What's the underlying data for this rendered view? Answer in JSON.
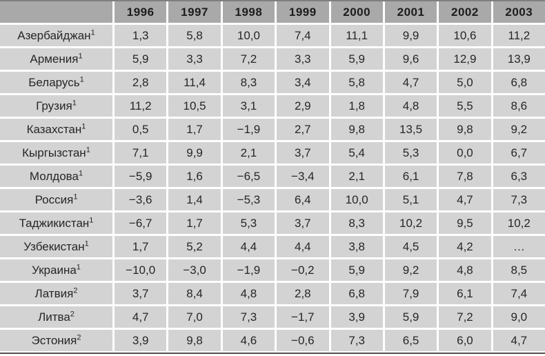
{
  "table": {
    "corner_label": "",
    "years": [
      "1996",
      "1997",
      "1998",
      "1999",
      "2000",
      "2001",
      "2002",
      "2003"
    ],
    "rows": [
      {
        "country": "Азербайджан",
        "footnote": "1",
        "values": [
          "1,3",
          "5,8",
          "10,0",
          "7,4",
          "11,1",
          "9,9",
          "10,6",
          "11,2"
        ]
      },
      {
        "country": "Армения",
        "footnote": "1",
        "values": [
          "5,9",
          "3,3",
          "7,2",
          "3,3",
          "5,9",
          "9,6",
          "12,9",
          "13,9"
        ]
      },
      {
        "country": "Беларусь",
        "footnote": "1",
        "values": [
          "2,8",
          "11,4",
          "8,3",
          "3,4",
          "5,8",
          "4,7",
          "5,0",
          "6,8"
        ]
      },
      {
        "country": "Грузия",
        "footnote": "1",
        "values": [
          "11,2",
          "10,5",
          "3,1",
          "2,9",
          "1,8",
          "4,8",
          "5,5",
          "8,6"
        ]
      },
      {
        "country": "Казахстан",
        "footnote": "1",
        "values": [
          "0,5",
          "1,7",
          "−1,9",
          "2,7",
          "9,8",
          "13,5",
          "9,8",
          "9,2"
        ]
      },
      {
        "country": "Кыргызстан",
        "footnote": "1",
        "values": [
          "7,1",
          "9,9",
          "2,1",
          "3,7",
          "5,4",
          "5,3",
          "0,0",
          "6,7"
        ]
      },
      {
        "country": "Молдова",
        "footnote": "1",
        "values": [
          "−5,9",
          "1,6",
          "−6,5",
          "−3,4",
          "2,1",
          "6,1",
          "7,8",
          "6,3"
        ]
      },
      {
        "country": "Россия",
        "footnote": "1",
        "values": [
          "−3,6",
          "1,4",
          "−5,3",
          "6,4",
          "10,0",
          "5,1",
          "4,7",
          "7,3"
        ]
      },
      {
        "country": "Таджикистан",
        "footnote": "1",
        "values": [
          "−6,7",
          "1,7",
          "5,3",
          "3,7",
          "8,3",
          "10,2",
          "9,5",
          "10,2"
        ]
      },
      {
        "country": "Узбекистан",
        "footnote": "1",
        "values": [
          "1,7",
          "5,2",
          "4,4",
          "4,4",
          "3,8",
          "4,5",
          "4,2",
          "…"
        ]
      },
      {
        "country": "Украина",
        "footnote": "1",
        "values": [
          "−10,0",
          "−3,0",
          "−1,9",
          "−0,2",
          "5,9",
          "9,2",
          "4,8",
          "8,5"
        ]
      },
      {
        "country": "Латвия",
        "footnote": "2",
        "values": [
          "3,7",
          "8,4",
          "4,8",
          "2,8",
          "6,8",
          "7,9",
          "6,1",
          "7,4"
        ]
      },
      {
        "country": "Литва",
        "footnote": "2",
        "values": [
          "4,7",
          "7,0",
          "7,3",
          "−1,7",
          "3,9",
          "5,9",
          "7,2",
          "9,0"
        ]
      },
      {
        "country": "Эстония",
        "footnote": "2",
        "values": [
          "3,9",
          "9,8",
          "4,6",
          "−0,6",
          "7,3",
          "6,5",
          "6,0",
          "4,7"
        ]
      }
    ]
  },
  "colors": {
    "header_bg": "#a9a9a9",
    "cell_bg": "#d3d3d3",
    "text": "#262626",
    "header_text": "#1c1c1c",
    "top_rule": "#7f7f7f",
    "bottom_rule": "#4f4f4f",
    "gap": "#ffffff"
  }
}
